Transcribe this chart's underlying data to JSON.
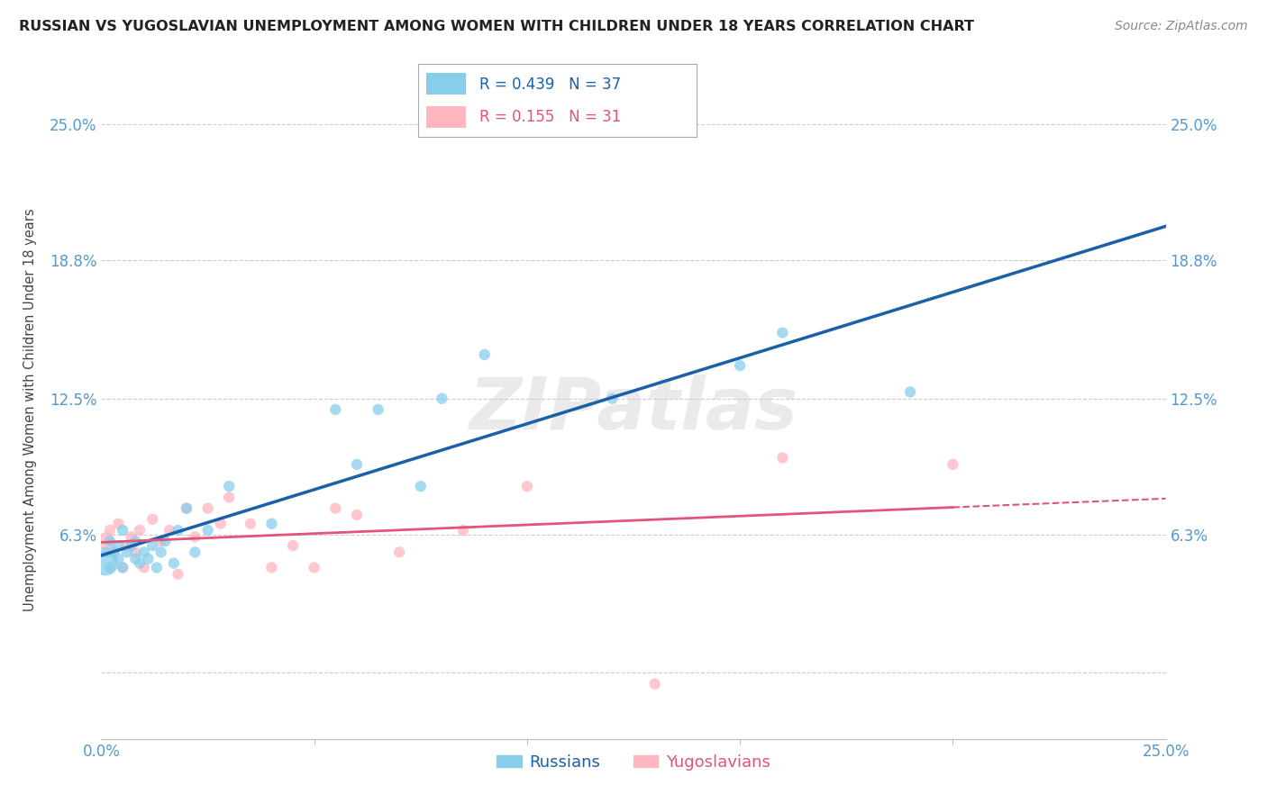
{
  "title": "RUSSIAN VS YUGOSLAVIAN UNEMPLOYMENT AMONG WOMEN WITH CHILDREN UNDER 18 YEARS CORRELATION CHART",
  "source": "Source: ZipAtlas.com",
  "ylabel": "Unemployment Among Women with Children Under 18 years",
  "watermark": "ZIPatlas",
  "legend_r1": "R = 0.439",
  "legend_n1": "N = 37",
  "legend_r2": "R = 0.155",
  "legend_n2": "N = 31",
  "xmin": 0.0,
  "xmax": 0.25,
  "ymin": -0.03,
  "ymax": 0.27,
  "ytick_vals": [
    0.0,
    0.063,
    0.125,
    0.188,
    0.25
  ],
  "ytick_labels": [
    "",
    "6.3%",
    "12.5%",
    "18.8%",
    "25.0%"
  ],
  "xtick_vals": [
    0.0,
    0.25
  ],
  "xtick_labels": [
    "0.0%",
    "25.0%"
  ],
  "grid_color": "#cccccc",
  "russian_color": "#87ceeb",
  "yugoslav_color": "#ffb6c1",
  "russian_line_color": "#1a5fa8",
  "yugoslav_line_color": "#e05578",
  "background_color": "#ffffff",
  "title_color": "#222222",
  "axis_label_color": "#444444",
  "tick_color": "#5599cc",
  "russians_x": [
    0.001,
    0.001,
    0.002,
    0.002,
    0.003,
    0.004,
    0.004,
    0.005,
    0.005,
    0.006,
    0.007,
    0.008,
    0.008,
    0.009,
    0.01,
    0.011,
    0.012,
    0.013,
    0.014,
    0.015,
    0.017,
    0.018,
    0.02,
    0.022,
    0.025,
    0.03,
    0.04,
    0.055,
    0.06,
    0.065,
    0.075,
    0.08,
    0.09,
    0.12,
    0.15,
    0.16,
    0.19
  ],
  "russians_y": [
    0.05,
    0.055,
    0.048,
    0.06,
    0.055,
    0.052,
    0.058,
    0.048,
    0.065,
    0.055,
    0.058,
    0.052,
    0.06,
    0.05,
    0.055,
    0.052,
    0.058,
    0.048,
    0.055,
    0.06,
    0.05,
    0.065,
    0.075,
    0.055,
    0.065,
    0.085,
    0.068,
    0.12,
    0.095,
    0.12,
    0.085,
    0.125,
    0.145,
    0.125,
    0.14,
    0.155,
    0.128
  ],
  "yugoslav_x": [
    0.001,
    0.002,
    0.003,
    0.004,
    0.005,
    0.006,
    0.007,
    0.008,
    0.009,
    0.01,
    0.012,
    0.014,
    0.016,
    0.018,
    0.02,
    0.022,
    0.025,
    0.028,
    0.03,
    0.035,
    0.04,
    0.045,
    0.05,
    0.055,
    0.06,
    0.07,
    0.085,
    0.1,
    0.13,
    0.16,
    0.2
  ],
  "yugoslav_y": [
    0.06,
    0.065,
    0.055,
    0.068,
    0.048,
    0.058,
    0.062,
    0.055,
    0.065,
    0.048,
    0.07,
    0.06,
    0.065,
    0.045,
    0.075,
    0.062,
    0.075,
    0.068,
    0.08,
    0.068,
    0.048,
    0.058,
    0.048,
    0.075,
    0.072,
    0.055,
    0.065,
    0.085,
    -0.005,
    0.098,
    0.095
  ],
  "dot_size_russians": [
    400,
    80,
    80,
    80,
    80,
    80,
    80,
    80,
    80,
    80,
    80,
    80,
    80,
    80,
    80,
    80,
    80,
    80,
    80,
    80,
    80,
    80,
    80,
    80,
    80,
    80,
    80,
    80,
    80,
    80,
    80,
    80,
    80,
    80,
    80,
    80,
    80
  ],
  "dot_size_yugoslav": [
    200,
    80,
    80,
    80,
    80,
    80,
    80,
    80,
    80,
    80,
    80,
    80,
    80,
    80,
    80,
    80,
    80,
    80,
    80,
    80,
    80,
    80,
    80,
    80,
    80,
    80,
    80,
    80,
    80,
    80,
    80
  ]
}
